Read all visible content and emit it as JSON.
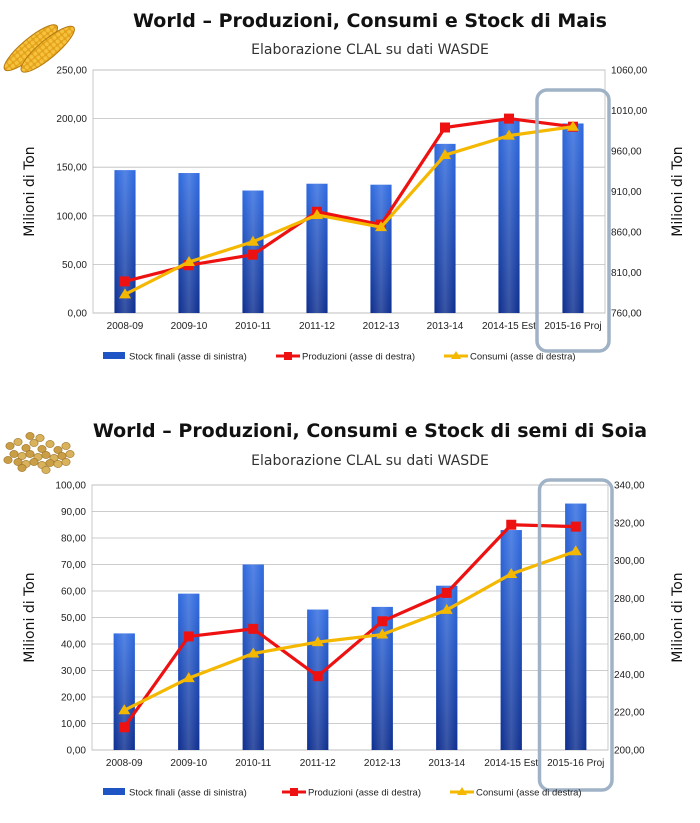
{
  "chart_data": [
    {
      "id": "mais",
      "type": "bar",
      "title": "World – Produzioni, Consumi e Stock di Mais",
      "subtitle": "Elaborazione CLAL su dati WASDE",
      "categories": [
        "2008-09",
        "2009-10",
        "2010-11",
        "2011-12",
        "2012-13",
        "2013-14",
        "2014-15 Est",
        "2015-16 Proj"
      ],
      "ylabel_left": "Milioni di Ton",
      "ylabel_right": "Milioni di Ton",
      "ylim_left": [
        0,
        250
      ],
      "yticks_left": [
        "0,00",
        "50,00",
        "100,00",
        "150,00",
        "200,00",
        "250,00"
      ],
      "ylim_right": [
        760,
        1060
      ],
      "yticks_right": [
        "760,00",
        "810,00",
        "860,00",
        "910,00",
        "960,00",
        "1010,00",
        "1060,00"
      ],
      "grid": true,
      "highlight_category": "2015-16 Proj",
      "legend_position": "bottom",
      "series": [
        {
          "name": "Stock finali (asse di sinistra)",
          "type": "bar",
          "axis": "left",
          "color": "#1f54c4",
          "values": [
            147,
            144,
            126,
            133,
            132,
            174,
            200,
            195
          ]
        },
        {
          "name": "Produzioni (asse di destra)",
          "type": "line",
          "axis": "right",
          "color": "#ee1111",
          "values": [
            799,
            819,
            832,
            885,
            869,
            989,
            1000,
            990
          ]
        },
        {
          "name": "Consumi (asse di destra)",
          "type": "line",
          "axis": "right",
          "color": "#f5b800",
          "values": [
            783,
            823,
            848,
            881,
            866,
            955,
            979,
            990
          ]
        }
      ]
    },
    {
      "id": "soia",
      "type": "bar",
      "title": "World – Produzioni, Consumi e Stock di semi di Soia",
      "subtitle": "Elaborazione CLAL su dati WASDE",
      "categories": [
        "2008-09",
        "2009-10",
        "2010-11",
        "2011-12",
        "2012-13",
        "2013-14",
        "2014-15 Est",
        "2015-16 Proj"
      ],
      "ylabel_left": "Milioni di Ton",
      "ylabel_right": "Milioni di Ton",
      "ylim_left": [
        0,
        100
      ],
      "yticks_left": [
        "0,00",
        "10,00",
        "20,00",
        "30,00",
        "40,00",
        "50,00",
        "60,00",
        "70,00",
        "80,00",
        "90,00",
        "100,00"
      ],
      "ylim_right": [
        200,
        340
      ],
      "yticks_right": [
        "200,00",
        "220,00",
        "240,00",
        "260,00",
        "280,00",
        "300,00",
        "320,00",
        "340,00"
      ],
      "grid": true,
      "highlight_category": "2015-16 Proj",
      "legend_position": "bottom",
      "series": [
        {
          "name": "Stock finali (asse di sinistra)",
          "type": "bar",
          "axis": "left",
          "color": "#1f54c4",
          "values": [
            44,
            59,
            70,
            53,
            54,
            62,
            83,
            93
          ]
        },
        {
          "name": "Produzioni (asse di destra)",
          "type": "line",
          "axis": "right",
          "color": "#ee1111",
          "values": [
            212,
            260,
            264,
            239,
            268,
            283,
            319,
            318
          ]
        },
        {
          "name": "Consumi (asse di destra)",
          "type": "line",
          "axis": "right",
          "color": "#f5b800",
          "values": [
            221,
            238,
            251,
            257,
            261,
            274,
            293,
            305
          ]
        }
      ]
    }
  ]
}
